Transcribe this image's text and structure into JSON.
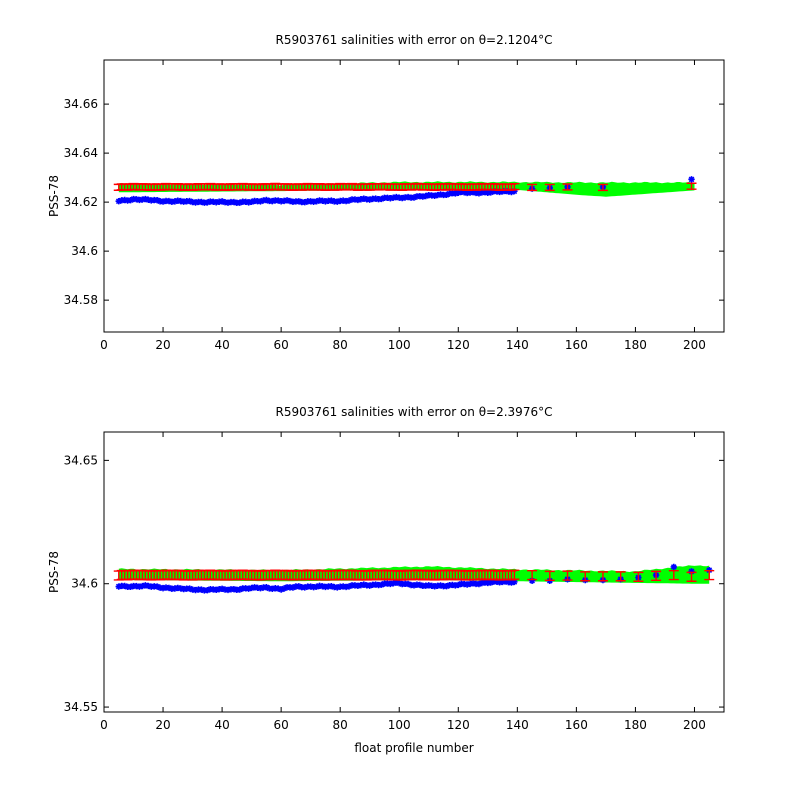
{
  "chart_data": [
    {
      "type": "scatter",
      "title_prefix": "R5903761 salinities with error on θ=",
      "title_value": "2.1204",
      "title_unit": "°C",
      "xlabel": "",
      "ylabel": "PSS-78",
      "xlim": [
        0,
        210
      ],
      "ylim": [
        34.567,
        34.678
      ],
      "xticks": [
        0,
        20,
        40,
        60,
        80,
        100,
        120,
        140,
        160,
        180,
        200
      ],
      "yticks": [
        34.58,
        34.6,
        34.62,
        34.64,
        34.66
      ],
      "ytick_labels": [
        "34.58",
        "34.6",
        "34.62",
        "34.64",
        "34.66"
      ],
      "grid": false,
      "colors": {
        "float": "#0000ff",
        "mapped": "#ff0000",
        "error_band": "#00ff00"
      },
      "float_x_range": [
        5,
        139
      ],
      "float_y_anchors": [
        [
          5,
          34.6205
        ],
        [
          10,
          34.6212
        ],
        [
          20,
          34.6205
        ],
        [
          25,
          34.6203
        ],
        [
          35,
          34.62
        ],
        [
          50,
          34.62
        ],
        [
          55,
          34.6208
        ],
        [
          65,
          34.6202
        ],
        [
          80,
          34.6205
        ],
        [
          90,
          34.6213
        ],
        [
          100,
          34.6218
        ],
        [
          110,
          34.6225
        ],
        [
          120,
          34.6238
        ],
        [
          130,
          34.624
        ],
        [
          139,
          34.6245
        ]
      ],
      "float_extra": [
        [
          145,
          34.6255
        ],
        [
          151,
          34.6258
        ],
        [
          157,
          34.6262
        ],
        [
          169,
          34.6262
        ],
        [
          199,
          34.6293
        ]
      ],
      "mapped_x_range": [
        5,
        139
      ],
      "mapped_value": 34.6262,
      "mapped_error": 0.0012,
      "mapped_extra": [
        [
          145,
          34.626
        ],
        [
          151,
          34.626
        ],
        [
          157,
          34.6262
        ],
        [
          169,
          34.626
        ],
        [
          199,
          34.6265
        ]
      ],
      "band_top": [
        [
          5,
          34.6275
        ],
        [
          60,
          34.627
        ],
        [
          100,
          34.6282
        ],
        [
          140,
          34.6282
        ],
        [
          160,
          34.628
        ],
        [
          200,
          34.628
        ]
      ],
      "band_bottom": [
        [
          5,
          34.624
        ],
        [
          60,
          34.6245
        ],
        [
          100,
          34.625
        ],
        [
          140,
          34.625
        ],
        [
          160,
          34.623
        ],
        [
          170,
          34.6222
        ],
        [
          200,
          34.6248
        ]
      ]
    },
    {
      "type": "scatter",
      "title_prefix": "R5903761 salinities with error on θ=",
      "title_value": "2.3976",
      "title_unit": "°C",
      "xlabel": "float profile number",
      "ylabel": "PSS-78",
      "xlim": [
        0,
        210
      ],
      "ylim": [
        34.548,
        34.6615
      ],
      "xticks": [
        0,
        20,
        40,
        60,
        80,
        100,
        120,
        140,
        160,
        180,
        200
      ],
      "yticks": [
        34.55,
        34.6,
        34.65
      ],
      "ytick_labels": [
        "34.55",
        "34.6",
        "34.65"
      ],
      "grid": false,
      "colors": {
        "float": "#0000ff",
        "mapped": "#ff0000",
        "error_band": "#00ff00"
      },
      "float_x_range": [
        5,
        139
      ],
      "float_y_anchors": [
        [
          5,
          34.599
        ],
        [
          15,
          34.599
        ],
        [
          25,
          34.598
        ],
        [
          35,
          34.5975
        ],
        [
          45,
          34.5978
        ],
        [
          55,
          34.5985
        ],
        [
          60,
          34.5978
        ],
        [
          65,
          34.5988
        ],
        [
          80,
          34.5988
        ],
        [
          90,
          34.5995
        ],
        [
          100,
          34.6002
        ],
        [
          110,
          34.599
        ],
        [
          120,
          34.5995
        ],
        [
          130,
          34.6005
        ],
        [
          139,
          34.6008
        ]
      ],
      "float_extra": [
        [
          145,
          34.6012
        ],
        [
          151,
          34.6012
        ],
        [
          157,
          34.6018
        ],
        [
          163,
          34.6015
        ],
        [
          169,
          34.6015
        ],
        [
          175,
          34.6018
        ],
        [
          181,
          34.6025
        ],
        [
          187,
          34.6035
        ],
        [
          193,
          34.6068
        ],
        [
          199,
          34.605
        ],
        [
          205,
          34.6055
        ]
      ],
      "mapped_x_range": [
        5,
        139
      ],
      "mapped_value": 34.6035,
      "mapped_error": 0.0018,
      "mapped_extra": [
        [
          145,
          34.6035
        ],
        [
          151,
          34.6032
        ],
        [
          157,
          34.6033
        ],
        [
          163,
          34.603
        ],
        [
          169,
          34.603
        ],
        [
          175,
          34.603
        ],
        [
          181,
          34.6028
        ],
        [
          187,
          34.6032
        ],
        [
          193,
          34.6035
        ],
        [
          199,
          34.6028
        ],
        [
          205,
          34.6035
        ]
      ],
      "band_top": [
        [
          5,
          34.606
        ],
        [
          60,
          34.6055
        ],
        [
          110,
          34.607
        ],
        [
          140,
          34.6058
        ],
        [
          180,
          34.605
        ],
        [
          200,
          34.6075
        ],
        [
          205,
          34.6072
        ]
      ],
      "band_bottom": [
        [
          5,
          34.6015
        ],
        [
          60,
          34.601
        ],
        [
          110,
          34.6015
        ],
        [
          140,
          34.601
        ],
        [
          170,
          34.6005
        ],
        [
          200,
          34.6
        ],
        [
          205,
          34.6
        ]
      ]
    }
  ]
}
